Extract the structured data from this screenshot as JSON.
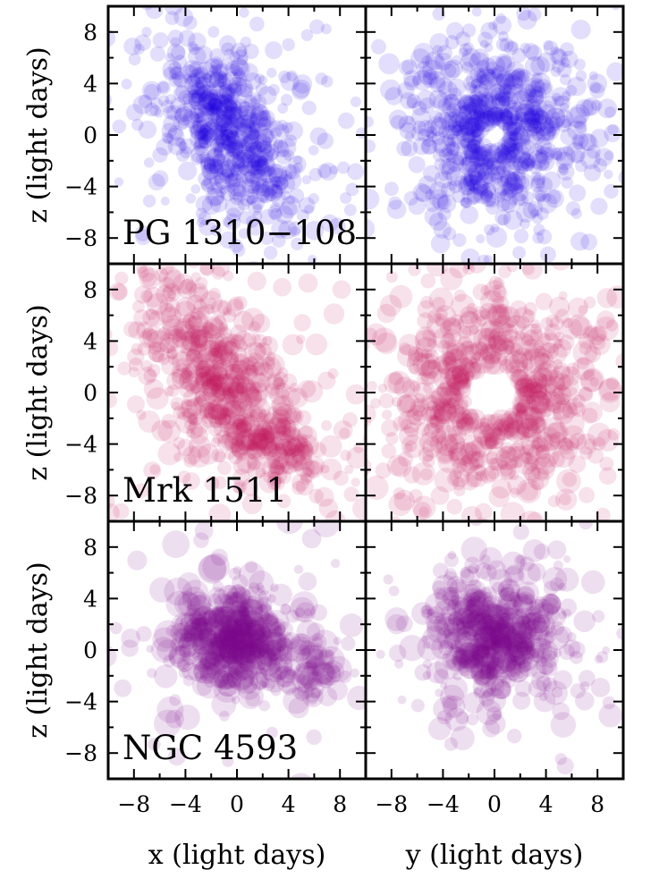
{
  "chart_data": {
    "type": "scatter",
    "xlim": [
      -10,
      10
    ],
    "ylim": [
      -10,
      10
    ],
    "x_ticks": [
      -8,
      -4,
      0,
      4,
      8
    ],
    "y_ticks": [
      -8,
      -4,
      0,
      4,
      8
    ],
    "x_tick_labels": [
      "−8",
      "−4",
      "0",
      "4",
      "8"
    ],
    "y_tick_labels": [
      "−8",
      "−4",
      "0",
      "4",
      "8"
    ],
    "column_xlabels": [
      "x (light days)",
      "y (light days)"
    ],
    "row_ylabel": "z (light days)",
    "grid": false,
    "layout": "3 rows x 2 columns, shared axes",
    "rows": [
      {
        "object": "PG 1310−108",
        "color": "#2200e0",
        "panels": [
          {
            "projection": "x-z",
            "description": "elongated cloud tilted from upper-left to lower-right, densest near the origin"
          },
          {
            "projection": "y-z",
            "description": "ring-shaped cloud with an empty hole at the origin"
          }
        ]
      },
      {
        "object": "Mrk 1511",
        "color": "#c0155a",
        "panels": [
          {
            "projection": "x-z",
            "description": "broad cloud extending from upper-left to lower-right, densest near (-2, 3)"
          },
          {
            "projection": "y-z",
            "description": "wide ring-shaped cloud with an empty hole at the origin"
          }
        ]
      },
      {
        "object": "NGC 4593",
        "color": "#7a0a8c",
        "panels": [
          {
            "projection": "x-z",
            "description": "compact cloud centered near (0, 1) with a sparse tail toward positive x"
          },
          {
            "projection": "y-z",
            "description": "compact roughly circular cloud centered near (0, 1)"
          }
        ]
      }
    ]
  }
}
